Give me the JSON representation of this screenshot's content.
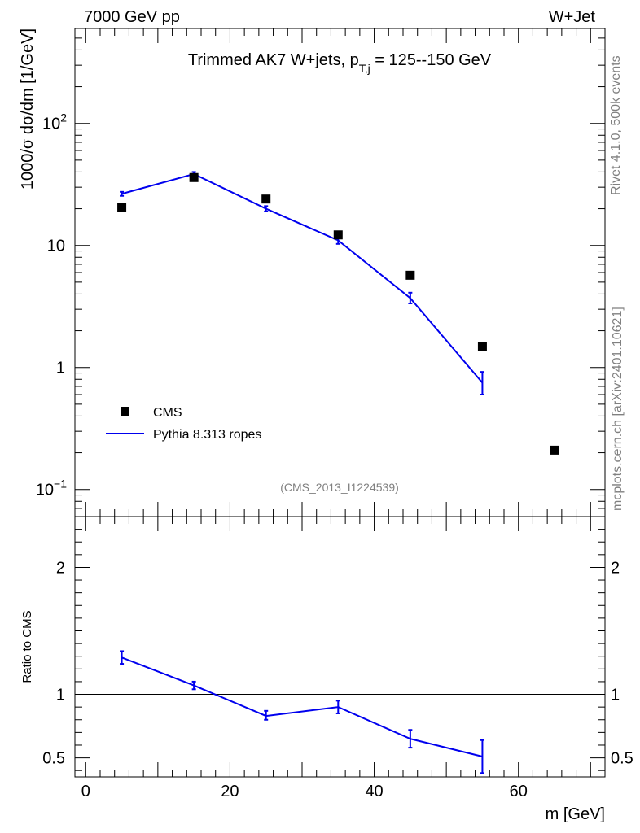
{
  "header": {
    "left": "7000 GeV pp",
    "right": "W+Jet"
  },
  "side_labels": {
    "rivet": "Rivet 4.1.0,  500k events",
    "mcplots": "mcplots.cern.ch [arXiv:2401.10621]"
  },
  "chart_data": [
    {
      "type": "scatter",
      "panel": "main",
      "title_parts": {
        "main": "Trimmed AK7 W+jets, p",
        "sub": "T,j",
        "rest": " = 125--150 GeV"
      },
      "ylabel": "1000/σ  dσ/dm [1/GeV]",
      "yscale": "log",
      "ylim": [
        0.06,
        600
      ],
      "xlim": [
        -1.5,
        72
      ],
      "y_ticks": [
        {
          "value": 0.1,
          "label_base": "10",
          "label_exp": "−1"
        },
        {
          "value": 1,
          "label_base": "1",
          "label_exp": ""
        },
        {
          "value": 10,
          "label_base": "10",
          "label_exp": ""
        },
        {
          "value": 100,
          "label_base": "10",
          "label_exp": "2"
        }
      ],
      "annotation": "(CMS_2013_I1224539)",
      "legend_position": "middle-left",
      "series": [
        {
          "name": "CMS",
          "style": "markers",
          "color": "#000000",
          "x": [
            5,
            15,
            25,
            35,
            45,
            55,
            65
          ],
          "y": [
            20.5,
            36,
            24,
            12.2,
            5.7,
            1.48,
            0.21
          ]
        },
        {
          "name": "Pythia 8.313 ropes",
          "style": "line",
          "color": "#0000ee",
          "x": [
            5,
            15,
            25,
            35,
            45,
            55
          ],
          "y": [
            26.5,
            38.5,
            20,
            11,
            3.7,
            0.75
          ],
          "yerr_low": [
            25.5,
            37,
            19,
            10.3,
            3.35,
            0.6
          ],
          "yerr_high": [
            27.5,
            40,
            21,
            11.8,
            4.1,
            0.92
          ]
        }
      ]
    },
    {
      "type": "line",
      "panel": "ratio",
      "ylabel": "Ratio to CMS",
      "xlabel": "m [GeV]",
      "ylim": [
        0.35,
        2.4
      ],
      "xlim": [
        -1.5,
        72
      ],
      "y_ticks": [
        {
          "value": 0.5,
          "label": "0.5"
        },
        {
          "value": 1,
          "label": "1"
        },
        {
          "value": 2,
          "label": "2"
        }
      ],
      "x_ticks": [
        {
          "value": 0,
          "label": "0"
        },
        {
          "value": 20,
          "label": "20"
        },
        {
          "value": 40,
          "label": "40"
        },
        {
          "value": 60,
          "label": "60"
        }
      ],
      "reference_line": 1,
      "series": [
        {
          "name": "Pythia 8.313 ropes / CMS",
          "color": "#0000ee",
          "x": [
            5,
            15,
            25,
            35,
            45,
            55
          ],
          "y": [
            1.29,
            1.07,
            0.83,
            0.9,
            0.65,
            0.51
          ],
          "yerr_low": [
            1.24,
            1.04,
            0.8,
            0.85,
            0.58,
            0.38
          ],
          "yerr_high": [
            1.34,
            1.1,
            0.87,
            0.95,
            0.72,
            0.64
          ]
        }
      ]
    }
  ]
}
